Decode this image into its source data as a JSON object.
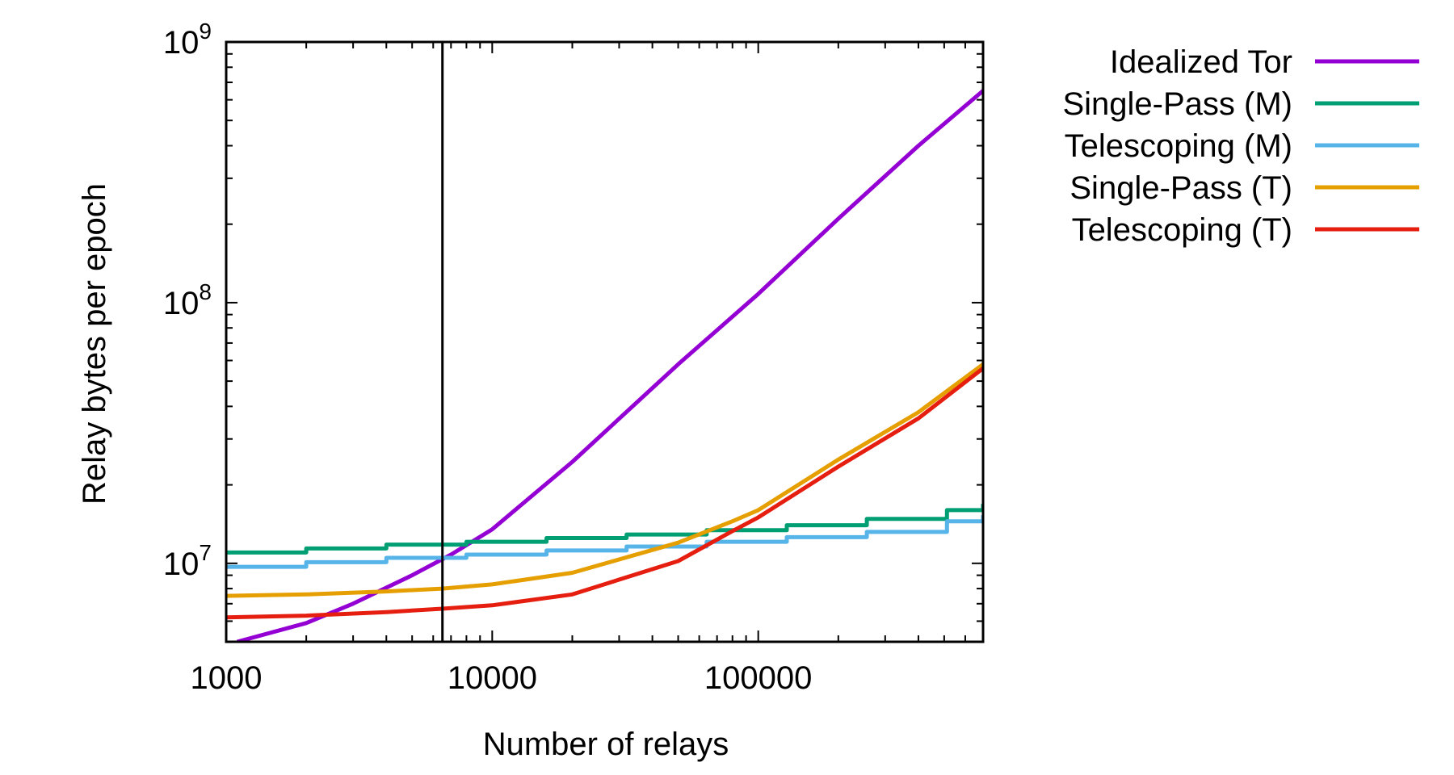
{
  "chart_data": {
    "type": "line",
    "xlabel": "Number of relays",
    "ylabel": "Relay bytes per epoch",
    "xscale": "log",
    "yscale": "log",
    "xlim": [
      1000,
      700000
    ],
    "ylim": [
      5000000,
      1000000000
    ],
    "x_ticks": [
      {
        "value": 1000,
        "label": "1000"
      },
      {
        "value": 10000,
        "label": "10000"
      },
      {
        "value": 100000,
        "label": "100000"
      }
    ],
    "y_ticks": [
      {
        "value": 10000000,
        "base": "10",
        "exp": "7"
      },
      {
        "value": 100000000,
        "base": "10",
        "exp": "8"
      },
      {
        "value": 1000000000,
        "base": "10",
        "exp": "9"
      }
    ],
    "vertical_marker": {
      "x": 6500
    },
    "legend_position": "outside-right-top",
    "grid": false,
    "series": [
      {
        "name": "Idealized Tor",
        "color": "#9400d3",
        "x": [
          1100,
          2000,
          3000,
          5000,
          7000,
          10000,
          20000,
          50000,
          100000,
          200000,
          400000,
          700000
        ],
        "y": [
          5000000,
          5900000,
          7000000,
          9000000,
          10800000,
          13500000,
          24500000,
          58000000,
          108000000,
          210000000,
          400000000,
          650000000
        ]
      },
      {
        "name": "Single-Pass (M)",
        "color": "#009e73",
        "step": true,
        "x": [
          1000,
          2000,
          4000,
          8000,
          16000,
          32000,
          64000,
          128000,
          256000,
          512000,
          700000
        ],
        "y": [
          11000000,
          11400000,
          11800000,
          12100000,
          12500000,
          12900000,
          13400000,
          14000000,
          14800000,
          16000000,
          16900000
        ]
      },
      {
        "name": "Telescoping (M)",
        "color": "#56b4e9",
        "step": true,
        "x": [
          1000,
          2000,
          4000,
          8000,
          16000,
          32000,
          64000,
          128000,
          256000,
          512000,
          700000
        ],
        "y": [
          9700000,
          10100000,
          10500000,
          10800000,
          11200000,
          11600000,
          12100000,
          12600000,
          13200000,
          14500000,
          15300000
        ]
      },
      {
        "name": "Single-Pass (T)",
        "color": "#e69f00",
        "x": [
          1000,
          2000,
          4000,
          6500,
          10000,
          20000,
          50000,
          80000,
          100000,
          200000,
          400000,
          700000
        ],
        "y": [
          7500000,
          7600000,
          7800000,
          8000000,
          8300000,
          9200000,
          12000000,
          14500000,
          16000000,
          25000000,
          38000000,
          58000000
        ]
      },
      {
        "name": "Telescoping (T)",
        "color": "#e51e10",
        "x": [
          1000,
          2000,
          4000,
          6500,
          10000,
          20000,
          50000,
          80000,
          100000,
          200000,
          400000,
          700000
        ],
        "y": [
          6200000,
          6300000,
          6500000,
          6700000,
          6900000,
          7600000,
          10200000,
          13300000,
          15000000,
          23500000,
          36000000,
          56000000
        ]
      }
    ]
  }
}
